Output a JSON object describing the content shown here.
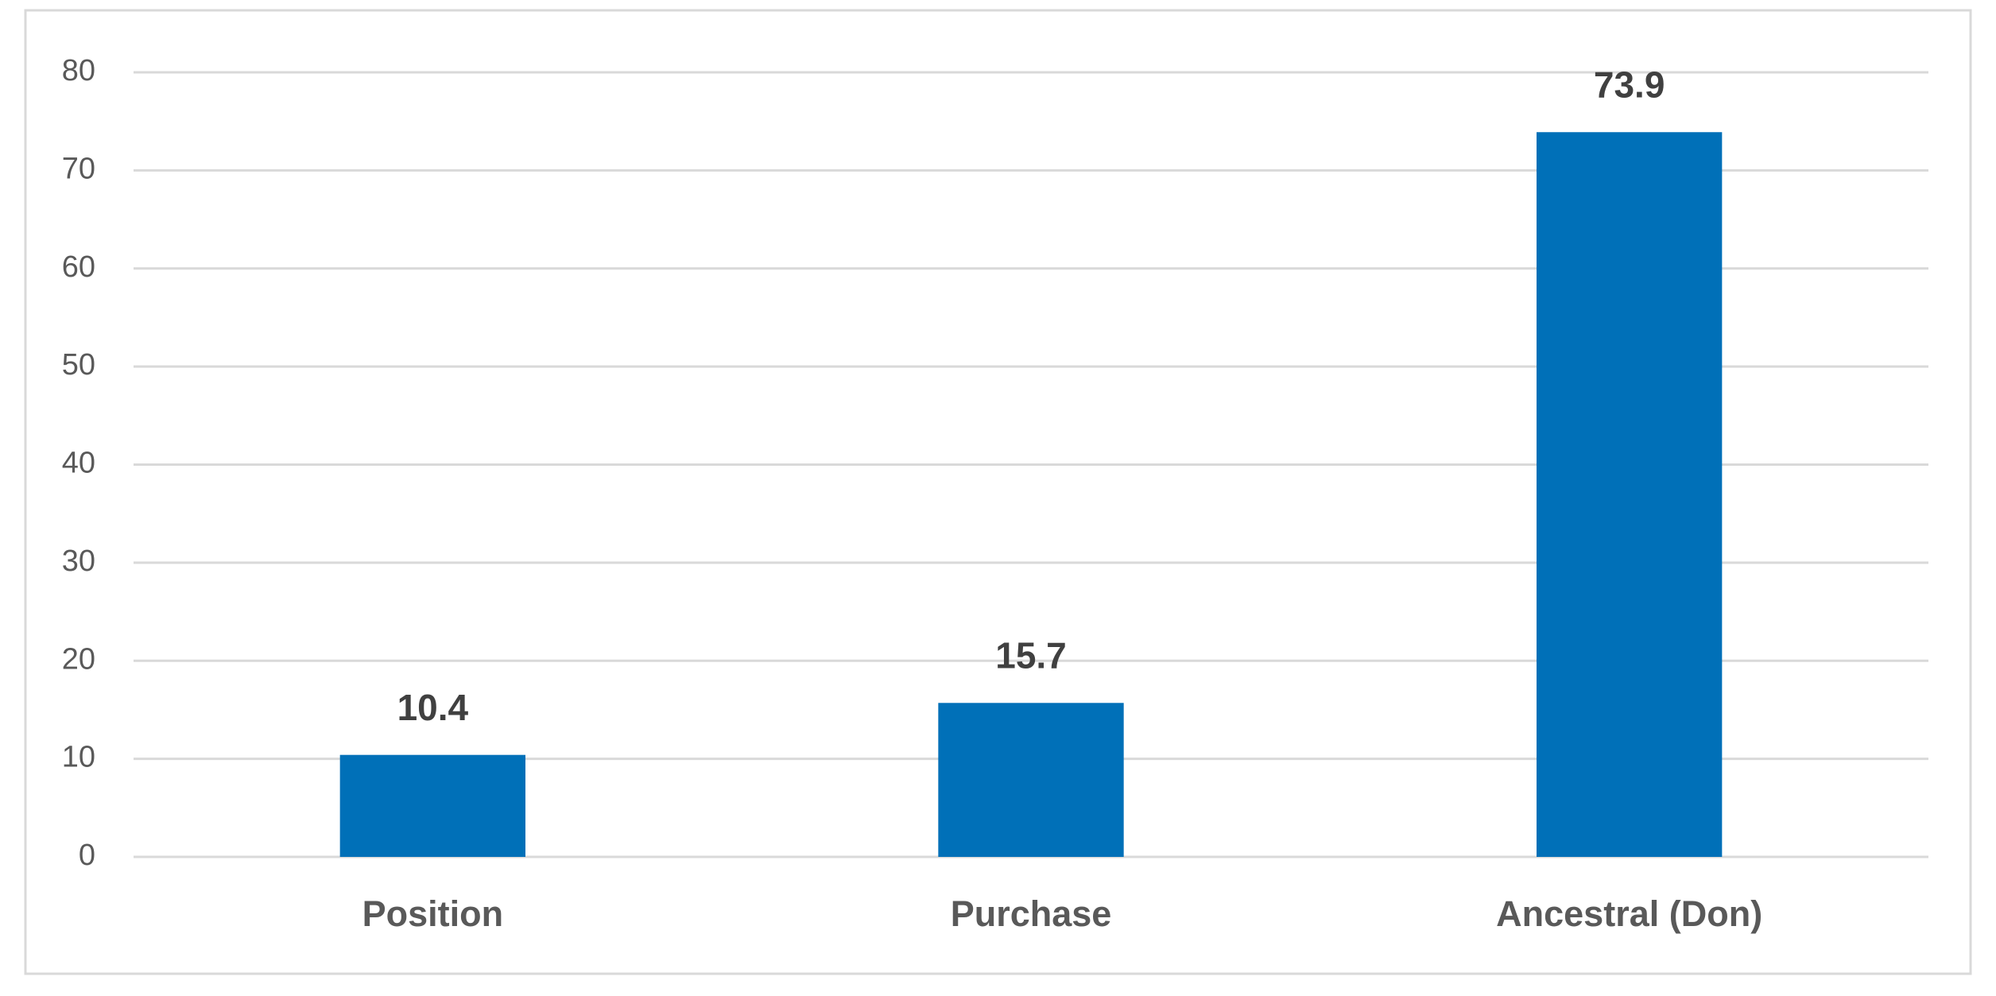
{
  "chart_data": {
    "type": "bar",
    "categories": [
      "Position",
      "Purchase",
      "Ancestral (Don)"
    ],
    "values": [
      10.4,
      15.7,
      73.9
    ],
    "color": "#0070b8",
    "ylim": [
      0,
      80
    ],
    "yticks": [
      0,
      10,
      20,
      30,
      40,
      50,
      60,
      70,
      80
    ],
    "grid": true
  }
}
